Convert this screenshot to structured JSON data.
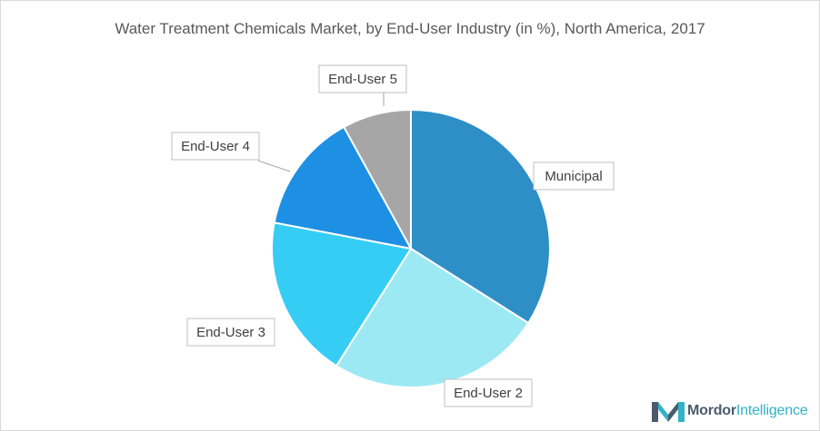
{
  "chart_data": {
    "type": "pie",
    "title": "Water Treatment Chemicals Market, by End-User Industry (in %), North America, 2017",
    "categories": [
      "Municipal",
      "End-User 2",
      "End-User 3",
      "End-User 4",
      "End-User 5"
    ],
    "values": [
      34,
      25,
      19,
      14,
      8
    ],
    "colors": [
      "#2e8fc6",
      "#9de9f3",
      "#36cdf5",
      "#1e90e4",
      "#a6a6a6"
    ],
    "start_angle_deg": 0,
    "direction": "clockwise",
    "legend": "none"
  },
  "branding": {
    "logo_name": "Mordor Intelligence",
    "logo_word1": "Mordor",
    "logo_word2": "Intelligence",
    "logo_colors": [
      "#4a5b6e",
      "#2fb3c9"
    ]
  }
}
